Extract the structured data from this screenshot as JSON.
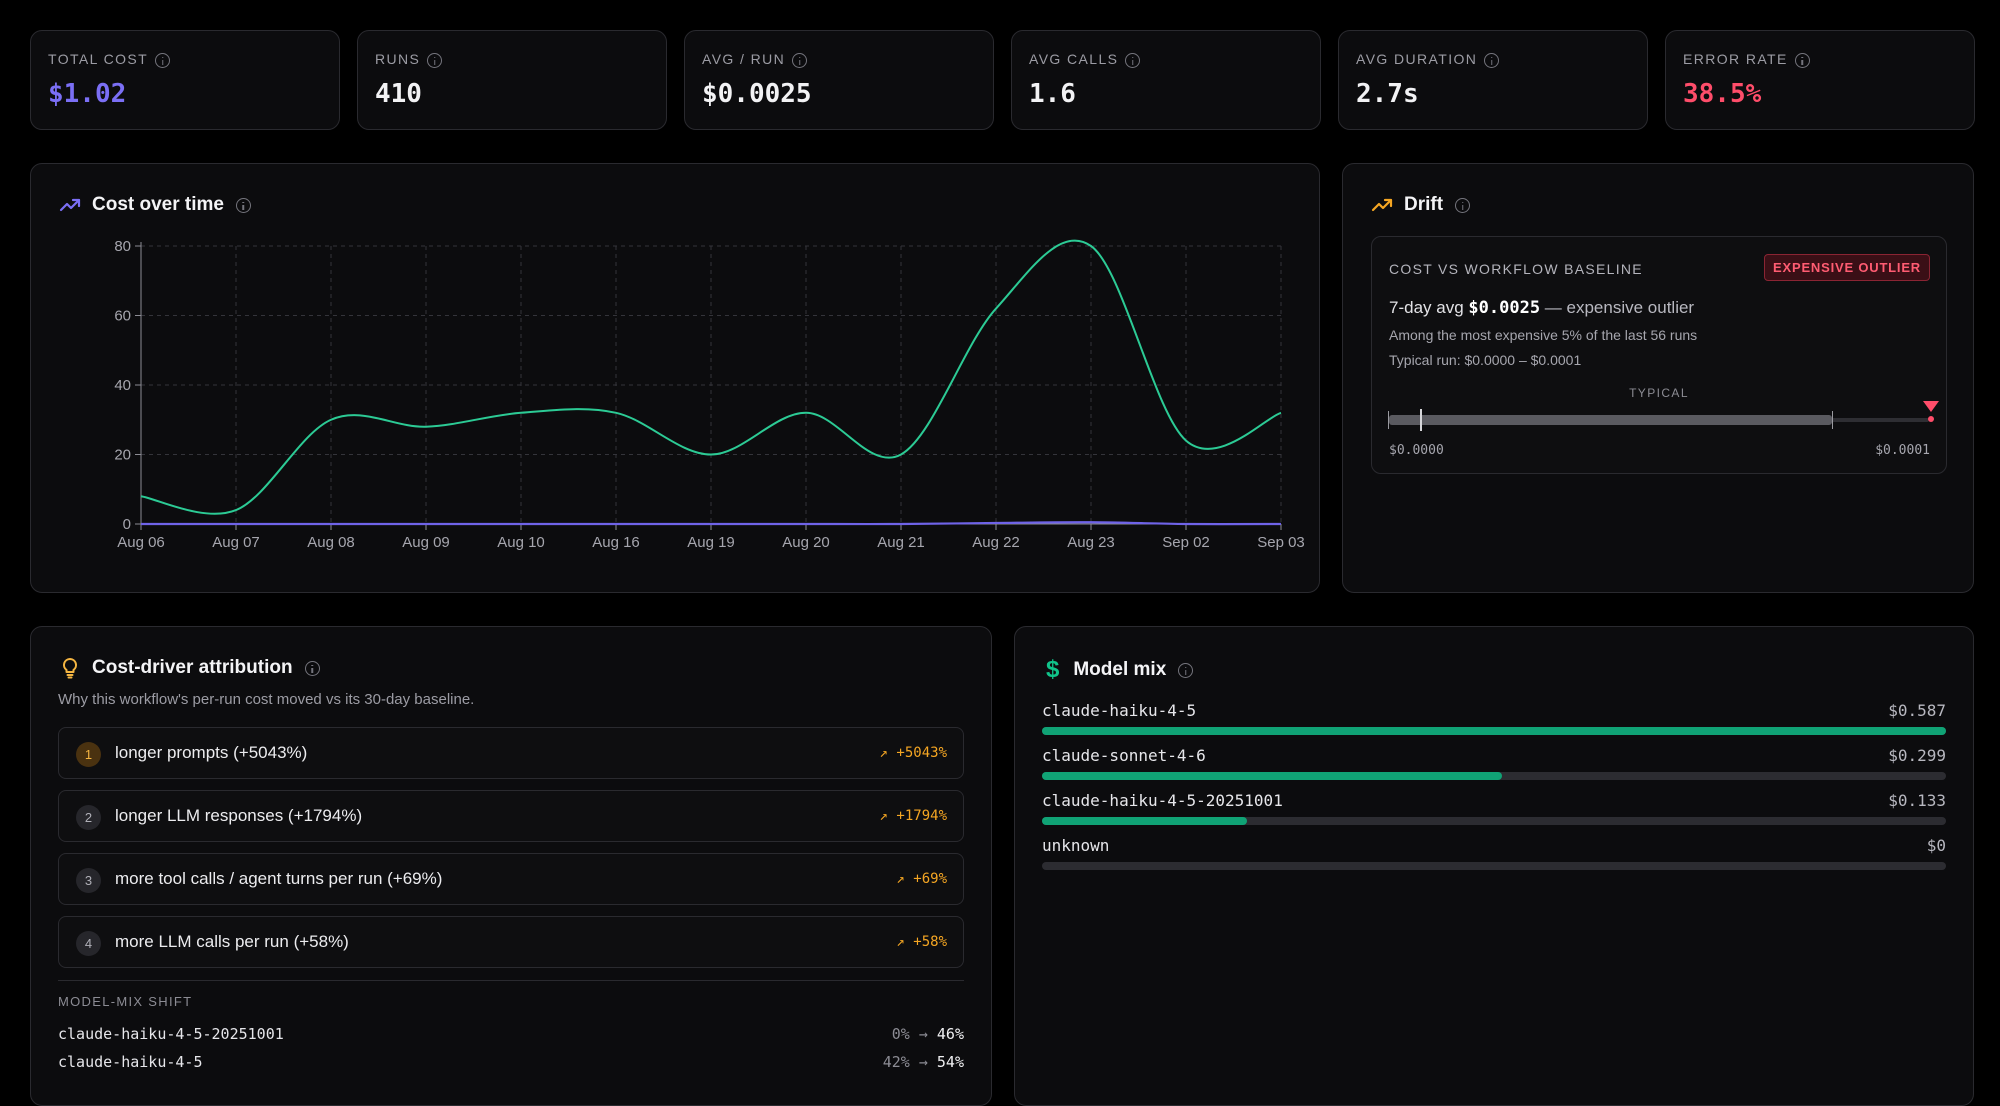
{
  "kpis": [
    {
      "label": "TOTAL COST",
      "value": "$1.02",
      "color": "#7b6ff5"
    },
    {
      "label": "RUNS",
      "value": "410",
      "color": "#f2f2f4"
    },
    {
      "label": "AVG / RUN",
      "value": "$0.0025",
      "color": "#f2f2f4"
    },
    {
      "label": "AVG CALLS",
      "value": "1.6",
      "color": "#f2f2f4"
    },
    {
      "label": "AVG DURATION",
      "value": "2.7s",
      "color": "#f2f2f4"
    },
    {
      "label": "ERROR RATE",
      "value": "38.5%",
      "color": "#ff4d6a"
    }
  ],
  "cost_chart": {
    "title": "Cost over time"
  },
  "chart_data": {
    "type": "line",
    "categories": [
      "Aug 06",
      "Aug 07",
      "Aug 08",
      "Aug 09",
      "Aug 10",
      "Aug 16",
      "Aug 19",
      "Aug 20",
      "Aug 21",
      "Aug 22",
      "Aug 23",
      "Sep 02",
      "Sep 03"
    ],
    "series": [
      {
        "values": [
          8,
          4,
          30,
          28,
          32,
          32,
          20,
          32,
          20,
          62,
          80,
          24,
          32
        ],
        "color": "#2ccb95"
      },
      {
        "values": [
          0,
          0,
          0,
          0,
          0,
          0,
          0,
          0,
          0,
          0.3,
          0.5,
          0,
          0
        ],
        "color": "#6f63e8"
      }
    ],
    "ylim": [
      0,
      80
    ],
    "yticks": [
      0,
      20,
      40,
      60,
      80
    ],
    "grid": true
  },
  "drift": {
    "title": "Drift",
    "section_label": "COST VS WORKFLOW BASELINE",
    "badge": "EXPENSIVE OUTLIER",
    "avg_prefix": "7-day avg",
    "avg_value": "$0.0025",
    "avg_suffix": "— expensive outlier",
    "line1": "Among the most expensive 5% of the last 56 runs",
    "line2": "Typical run: $0.0000 – $0.0001",
    "range_label": "TYPICAL",
    "range_min": "$0.0000",
    "range_max": "$0.0001"
  },
  "attribution": {
    "title": "Cost-driver attribution",
    "subtitle": "Why this workflow's per-run cost moved vs its 30-day baseline.",
    "items": [
      {
        "num": "1",
        "label": "longer prompts (+5043%)",
        "delta": "+5043%"
      },
      {
        "num": "2",
        "label": "longer LLM responses (+1794%)",
        "delta": "+1794%"
      },
      {
        "num": "3",
        "label": "more tool calls / agent turns per run (+69%)",
        "delta": "+69%"
      },
      {
        "num": "4",
        "label": "more LLM calls per run (+58%)",
        "delta": "+58%"
      }
    ],
    "shift_label": "MODEL-MIX SHIFT",
    "shifts": [
      {
        "model": "claude-haiku-4-5-20251001",
        "from": "0%",
        "to": "46%"
      },
      {
        "model": "claude-haiku-4-5",
        "from": "42%",
        "to": "54%"
      }
    ]
  },
  "model_mix": {
    "title": "Model mix",
    "items": [
      {
        "name": "claude-haiku-4-5",
        "cost": "$0.587",
        "share": 1.0
      },
      {
        "name": "claude-sonnet-4-6",
        "cost": "$0.299",
        "share": 0.509
      },
      {
        "name": "claude-haiku-4-5-20251001",
        "cost": "$0.133",
        "share": 0.227
      },
      {
        "name": "unknown",
        "cost": "$0",
        "share": 0
      }
    ]
  }
}
